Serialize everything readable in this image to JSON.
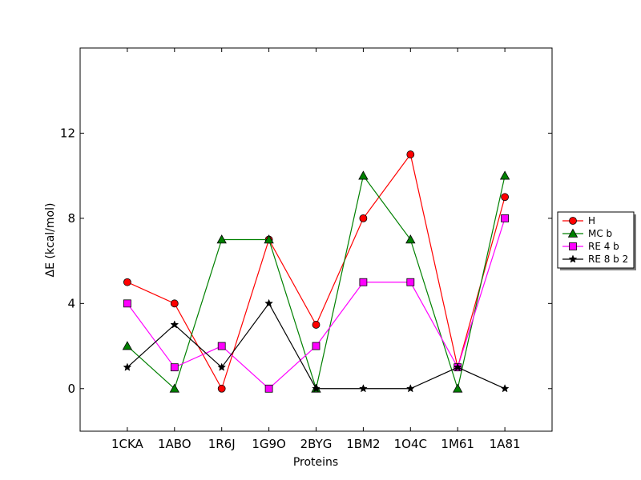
{
  "chart_data": {
    "type": "line",
    "title": "",
    "xlabel": "Proteins",
    "ylabel": "ΔE (kcal/mol)",
    "categories": [
      "1CKA",
      "1ABO",
      "1R6J",
      "1G9O",
      "2BYG",
      "1BM2",
      "1O4C",
      "1M61",
      "1A81"
    ],
    "ylim": [
      -2,
      16
    ],
    "yticks": [
      0,
      4,
      8,
      12
    ],
    "grid": false,
    "legend_position": "center-right outside",
    "series": [
      {
        "name": "H",
        "color": "#ff0000",
        "marker": "circle",
        "values": [
          5,
          4,
          0,
          7,
          3,
          8,
          11,
          1,
          9
        ]
      },
      {
        "name": "MC b",
        "color": "#008000",
        "marker": "triangle",
        "values": [
          2,
          0,
          7,
          7,
          0,
          10,
          7,
          0,
          10
        ]
      },
      {
        "name": "RE 4 b",
        "color": "#ff00ff",
        "marker": "square",
        "values": [
          4,
          1,
          2,
          0,
          2,
          5,
          5,
          1,
          8
        ]
      },
      {
        "name": "RE 8 b 2",
        "color": "#000000",
        "marker": "star",
        "values": [
          1,
          3,
          1,
          4,
          0,
          0,
          0,
          1,
          0
        ]
      }
    ]
  }
}
